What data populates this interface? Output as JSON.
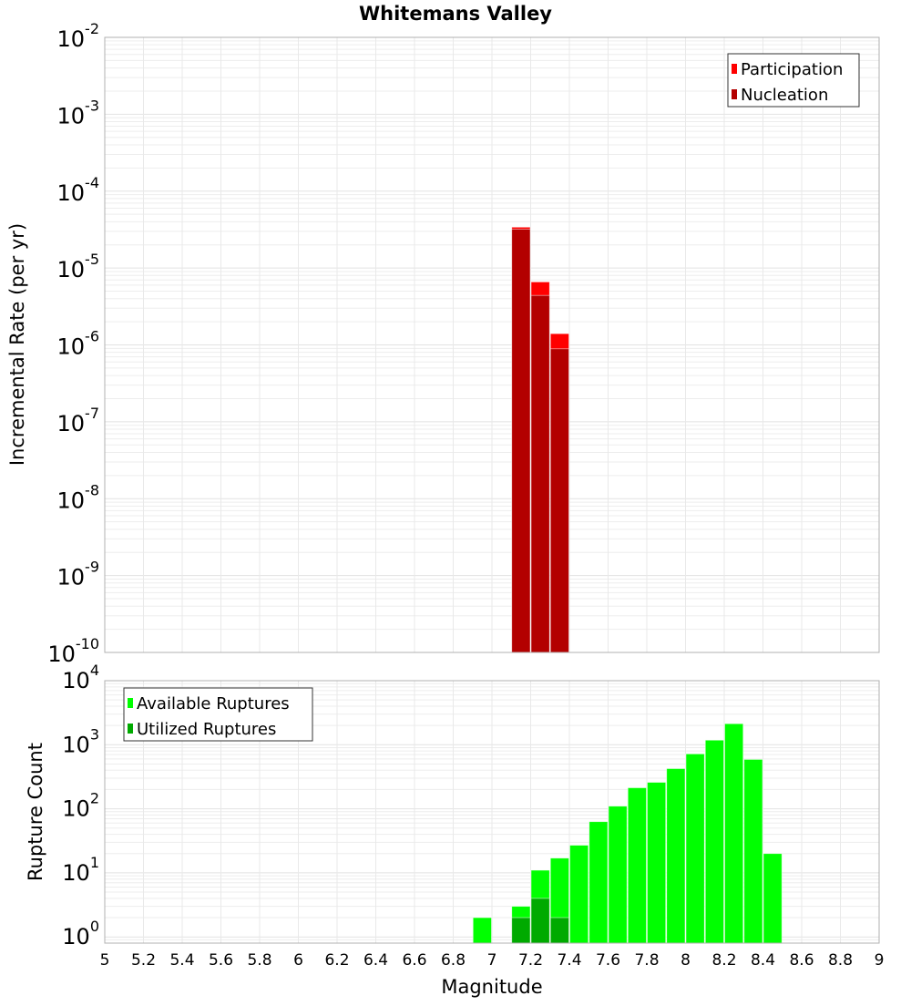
{
  "chart_data": [
    {
      "type": "bar",
      "title": "Whitemans Valley",
      "xlabel": "Magnitude",
      "ylabel": "Incremental Rate (per yr)",
      "yscale": "log",
      "xlim": [
        5,
        9
      ],
      "ylim": [
        1e-10,
        0.01
      ],
      "y_tick_exponents": [
        -10,
        -9,
        -8,
        -7,
        -6,
        -5,
        -4,
        -3,
        -2
      ],
      "grid": true,
      "legend_position": "top-right",
      "bin_width": 0.1,
      "series": [
        {
          "name": "Participation",
          "color": "#ff0000",
          "x": [
            7.15,
            7.25,
            7.35
          ],
          "values": [
            3.4e-05,
            6.6e-06,
            1.4e-06
          ]
        },
        {
          "name": "Nucleation",
          "color": "#b30000",
          "x": [
            7.15,
            7.25,
            7.35
          ],
          "values": [
            3.2e-05,
            4.4e-06,
            8.9e-07
          ]
        }
      ]
    },
    {
      "type": "bar",
      "xlabel": "Magnitude",
      "ylabel": "Rupture Count",
      "yscale": "log",
      "xlim": [
        5,
        9
      ],
      "ylim": [
        0.8,
        10000
      ],
      "y_tick_exponents": [
        0,
        1,
        2,
        3,
        4
      ],
      "x_ticks": [
        "5",
        "5.2",
        "5.4",
        "5.6",
        "5.8",
        "6",
        "6.2",
        "6.4",
        "6.6",
        "6.8",
        "7",
        "7.2",
        "7.4",
        "7.6",
        "7.8",
        "8",
        "8.2",
        "8.4",
        "8.6",
        "8.8",
        "9"
      ],
      "grid": true,
      "legend_position": "top-left",
      "bin_width": 0.1,
      "series": [
        {
          "name": "Available Ruptures",
          "color": "#00ff00",
          "x": [
            6.95,
            7.15,
            7.25,
            7.35,
            7.45,
            7.55,
            7.65,
            7.75,
            7.85,
            7.95,
            8.05,
            8.15,
            8.25,
            8.35,
            8.45
          ],
          "values": [
            2,
            3,
            11,
            17,
            27,
            63,
            110,
            213,
            259,
            424,
            720,
            1180,
            2130,
            590,
            20
          ]
        },
        {
          "name": "Utilized Ruptures",
          "color": "#00aa00",
          "x": [
            7.15,
            7.25,
            7.35
          ],
          "values": [
            2,
            4,
            2
          ]
        }
      ]
    }
  ]
}
